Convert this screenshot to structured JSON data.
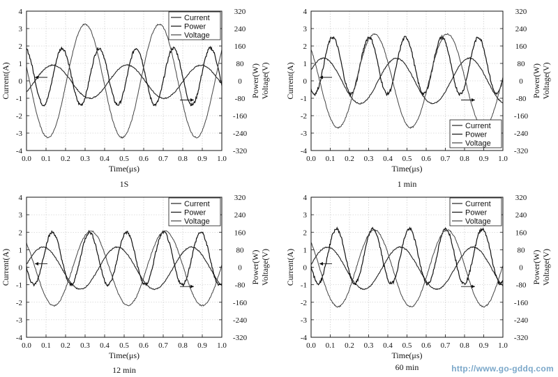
{
  "watermark": "http://www.go-gddq.com",
  "chart_data": [
    {
      "type": "line",
      "caption": "1S",
      "xlabel": "Time(μs)",
      "ylabel_left": "Current(A)",
      "ylabel_right_power": "Power(W)",
      "ylabel_right_voltage": "Voltage(V)",
      "xlim": [
        0.0,
        1.0
      ],
      "ylim_left": [
        -4,
        4
      ],
      "ylim_right": [
        -320,
        320
      ],
      "x_ticks": [
        "0.0",
        "0.1",
        "0.2",
        "0.3",
        "0.4",
        "0.5",
        "0.6",
        "0.7",
        "0.8",
        "0.9",
        "1.0"
      ],
      "y_ticks_left": [
        "4",
        "3",
        "2",
        "1",
        "0",
        "-1",
        "-2",
        "-3",
        "-4"
      ],
      "y_ticks_right": [
        "320",
        "240",
        "160",
        "80",
        "0",
        "-80",
        "-160",
        "-240",
        "-320"
      ],
      "grid": true,
      "legend_position": "top-right",
      "series": [
        {
          "name": "Current",
          "axis": "left",
          "shape": "sine",
          "amplitude": 0.95,
          "period": 0.38,
          "phase": 0.04,
          "offset": -0.05
        },
        {
          "name": "Power",
          "axis": "right",
          "shape": "double",
          "amplitude": 130,
          "period": 0.38,
          "phase": 0.04,
          "offset": 20
        },
        {
          "name": "Voltage",
          "axis": "right",
          "shape": "sine",
          "amplitude": 260,
          "period": 0.38,
          "phase": 0.205,
          "offset": 0
        }
      ]
    },
    {
      "type": "line",
      "caption": "1 min",
      "xlabel": "Time(μs)",
      "ylabel_left": "Current(A)",
      "ylabel_right_power": "Power(W)",
      "ylabel_right_voltage": "Voltage(V)",
      "xlim": [
        0.0,
        1.0
      ],
      "ylim_left": [
        -4,
        4
      ],
      "ylim_right": [
        -320,
        320
      ],
      "x_ticks": [
        "0.0",
        "0.1",
        "0.2",
        "0.3",
        "0.4",
        "0.5",
        "0.6",
        "0.7",
        "0.8",
        "0.9",
        "1.0"
      ],
      "y_ticks_left": [
        "4",
        "3",
        "2",
        "1",
        "0",
        "-1",
        "-2",
        "-3",
        "-4"
      ],
      "y_ticks_right": [
        "320",
        "240",
        "160",
        "80",
        "0",
        "-80",
        "-160",
        "-240",
        "-320"
      ],
      "grid": true,
      "legend_position": "bottom-right",
      "series": [
        {
          "name": "Current",
          "axis": "left",
          "shape": "sine",
          "amplitude": 1.3,
          "period": 0.38,
          "phase": -0.03,
          "offset": 0
        },
        {
          "name": "Power",
          "axis": "right",
          "shape": "double",
          "amplitude": 130,
          "period": 0.38,
          "phase": -0.03,
          "offset": 70
        },
        {
          "name": "Voltage",
          "axis": "right",
          "shape": "sine",
          "amplitude": 215,
          "period": 0.38,
          "phase": 0.235,
          "offset": 0
        }
      ]
    },
    {
      "type": "line",
      "caption": "12 min",
      "xlabel": "Time(μs)",
      "ylabel_left": "Current(A)",
      "ylabel_right_power": "Power(W)",
      "ylabel_right_voltage": "Voltage(V)",
      "xlim": [
        0.0,
        1.0
      ],
      "ylim_left": [
        -4,
        4
      ],
      "ylim_right": [
        -320,
        320
      ],
      "x_ticks": [
        "0.0",
        "0.1",
        "0.2",
        "0.3",
        "0.4",
        "0.5",
        "0.6",
        "0.7",
        "0.8",
        "0.9",
        "1.0"
      ],
      "y_ticks_left": [
        "4",
        "3",
        "2",
        "1",
        "0",
        "-1",
        "-2",
        "-3",
        "-4"
      ],
      "y_ticks_right": [
        "320",
        "240",
        "160",
        "80",
        "0",
        "-80",
        "-160",
        "-240",
        "-320"
      ],
      "grid": true,
      "legend_position": "top-right",
      "series": [
        {
          "name": "Current",
          "axis": "left",
          "shape": "sine",
          "amplitude": 1.2,
          "period": 0.38,
          "phase": -0.01,
          "offset": -0.05
        },
        {
          "name": "Power",
          "axis": "right",
          "shape": "double",
          "amplitude": 120,
          "period": 0.38,
          "phase": -0.01,
          "offset": 40
        },
        {
          "name": "Voltage",
          "axis": "right",
          "shape": "sine",
          "amplitude": 170,
          "period": 0.38,
          "phase": 0.235,
          "offset": -5
        }
      ]
    },
    {
      "type": "line",
      "caption": "60 min",
      "xlabel": "Time(μs)",
      "ylabel_left": "Current(A)",
      "ylabel_right_power": "Power(W)",
      "ylabel_right_voltage": "Voltage(V)",
      "xlim": [
        0.0,
        1.0
      ],
      "ylim_left": [
        -4,
        4
      ],
      "ylim_right": [
        -320,
        320
      ],
      "x_ticks": [
        "0.0",
        "0.1",
        "0.2",
        "0.3",
        "0.4",
        "0.5",
        "0.6",
        "0.7",
        "0.8",
        "0.9",
        "1.0"
      ],
      "y_ticks_left": [
        "4",
        "3",
        "2",
        "1",
        "0",
        "-1",
        "-2",
        "-3",
        "-4"
      ],
      "y_ticks_right": [
        "320",
        "240",
        "160",
        "80",
        "0",
        "-80",
        "-160",
        "-240",
        "-320"
      ],
      "grid": true,
      "legend_position": "top-right",
      "series": [
        {
          "name": "Current",
          "axis": "left",
          "shape": "sine",
          "amplitude": 1.2,
          "period": 0.38,
          "phase": -0.01,
          "offset": -0.05
        },
        {
          "name": "Power",
          "axis": "right",
          "shape": "double",
          "amplitude": 125,
          "period": 0.38,
          "phase": -0.01,
          "offset": 50
        },
        {
          "name": "Voltage",
          "axis": "right",
          "shape": "sine",
          "amplitude": 175,
          "period": 0.38,
          "phase": 0.235,
          "offset": -5
        }
      ]
    }
  ]
}
